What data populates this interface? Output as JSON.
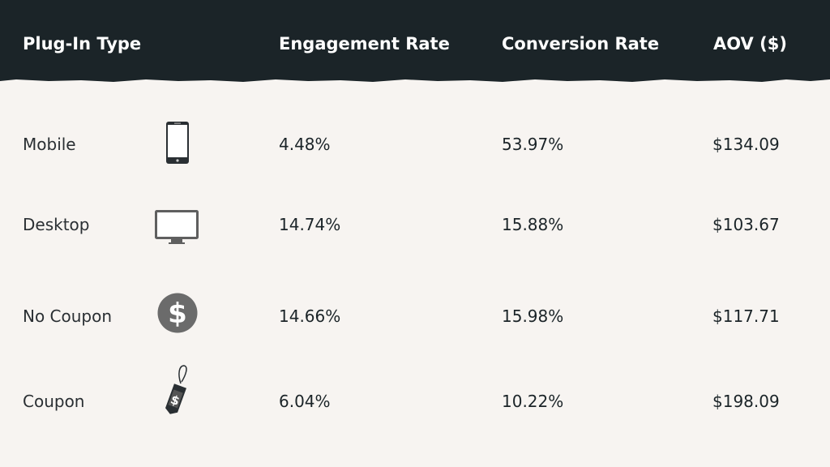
{
  "chart_data": {
    "type": "table",
    "columns": [
      "Plug-In Type",
      "Engagement Rate",
      "Conversion Rate",
      "AOV  ($)"
    ],
    "rows": [
      {
        "type": "Mobile",
        "icon": "mobile-phone-icon",
        "engagement": "4.48%",
        "conversion": "53.97%",
        "aov": "$134.09"
      },
      {
        "type": "Desktop",
        "icon": "desktop-monitor-icon",
        "engagement": "14.74%",
        "conversion": "15.88%",
        "aov": "$103.67"
      },
      {
        "type": "No Coupon",
        "icon": "dollar-circle-icon",
        "engagement": "14.66%",
        "conversion": "15.98%",
        "aov": "$117.71"
      },
      {
        "type": "Coupon",
        "icon": "price-tag-icon",
        "engagement": "6.04%",
        "conversion": "10.22%",
        "aov": "$198.09"
      }
    ]
  },
  "colors": {
    "header_bg": "#1b2428",
    "body_bg": "#f7f4f1",
    "icon_gray": "#6b6b6b"
  }
}
